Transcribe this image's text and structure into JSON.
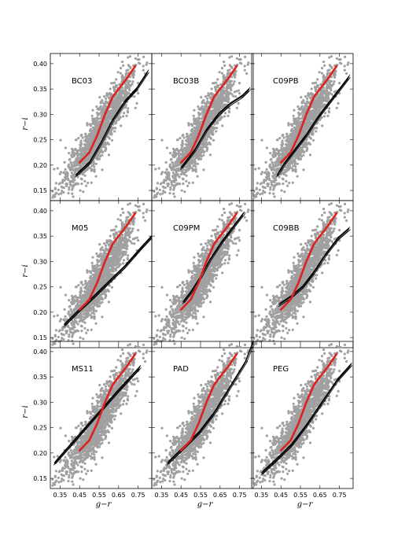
{
  "chart_data": {
    "type": "scatter",
    "layout": "3x3 grid of panels sharing axes",
    "xlabel": "g−r",
    "ylabel": "r−i",
    "xlim": [
      0.3,
      0.82
    ],
    "ylim": [
      0.13,
      0.42
    ],
    "xticks": [
      "0.35",
      "0.45",
      "0.55",
      "0.65",
      "0.75"
    ],
    "xtick_values": [
      0.35,
      0.45,
      0.55,
      0.65,
      0.75
    ],
    "yticks": [
      "0.15",
      "0.20",
      "0.25",
      "0.30",
      "0.35",
      "0.40"
    ],
    "ytick_values": [
      0.15,
      0.2,
      0.25,
      0.3,
      0.35,
      0.4
    ],
    "colors": {
      "points": "#a0a0a0",
      "observed_median": "#dd2222",
      "model_tracks": "#000000"
    },
    "red_median_track": {
      "x": [
        0.45,
        0.5,
        0.54,
        0.58,
        0.62,
        0.66,
        0.7,
        0.735
      ],
      "y": [
        0.205,
        0.225,
        0.258,
        0.3,
        0.335,
        0.355,
        0.375,
        0.395
      ]
    },
    "scatter_cloud": {
      "count": 1500,
      "core_track": {
        "x": [
          0.35,
          0.45,
          0.55,
          0.65,
          0.75,
          0.78
        ],
        "y": [
          0.16,
          0.2,
          0.26,
          0.33,
          0.38,
          0.4
        ]
      },
      "spread_x": 0.035,
      "spread_y": 0.022
    },
    "panels": [
      {
        "label": "BC03",
        "tracks": [
          {
            "x": [
              0.43,
              0.5,
              0.56,
              0.62,
              0.68,
              0.74,
              0.8
            ],
            "y": [
              0.18,
              0.205,
              0.245,
              0.29,
              0.325,
              0.35,
              0.385
            ]
          }
        ]
      },
      {
        "label": "BC03B",
        "tracks": [
          {
            "x": [
              0.45,
              0.52,
              0.58,
              0.64,
              0.7,
              0.76,
              0.8
            ],
            "y": [
              0.195,
              0.23,
              0.27,
              0.3,
              0.32,
              0.335,
              0.35
            ]
          }
        ]
      },
      {
        "label": "C09PB",
        "tracks": [
          {
            "x": [
              0.43,
              0.47,
              0.52,
              0.58,
              0.64,
              0.7,
              0.76,
              0.8
            ],
            "y": [
              0.18,
              0.205,
              0.23,
              0.26,
              0.295,
              0.325,
              0.355,
              0.375
            ]
          }
        ]
      },
      {
        "label": "M05",
        "tracks": [
          {
            "x": [
              0.37,
              0.45,
              0.52,
              0.6,
              0.68,
              0.76,
              0.82
            ],
            "y": [
              0.175,
              0.205,
              0.23,
              0.26,
              0.29,
              0.325,
              0.35
            ]
          }
        ]
      },
      {
        "label": "C09PM",
        "tracks": [
          {
            "x": [
              0.46,
              0.5,
              0.55,
              0.6,
              0.66,
              0.72,
              0.77
            ],
            "y": [
              0.22,
              0.24,
              0.27,
              0.305,
              0.34,
              0.37,
              0.395
            ]
          }
        ]
      },
      {
        "label": "C09BB",
        "tracks": [
          {
            "x": [
              0.44,
              0.5,
              0.56,
              0.62,
              0.68,
              0.74,
              0.8
            ],
            "y": [
              0.215,
              0.23,
              0.25,
              0.28,
              0.315,
              0.345,
              0.365
            ]
          }
        ]
      },
      {
        "label": "MS11",
        "tracks": [
          {
            "x": [
              0.32,
              0.4,
              0.48,
              0.56,
              0.64,
              0.7,
              0.76
            ],
            "y": [
              0.18,
              0.215,
              0.25,
              0.285,
              0.32,
              0.345,
              0.37
            ]
          }
        ]
      },
      {
        "label": "PAD",
        "tracks": [
          {
            "x": [
              0.38,
              0.46,
              0.54,
              0.62,
              0.7,
              0.78,
              0.82
            ],
            "y": [
              0.18,
              0.21,
              0.24,
              0.28,
              0.33,
              0.38,
              0.42
            ]
          }
        ]
      },
      {
        "label": "PEG",
        "tracks": [
          {
            "x": [
              0.35,
              0.42,
              0.5,
              0.58,
              0.66,
              0.74,
              0.81
            ],
            "y": [
              0.16,
              0.185,
              0.215,
              0.255,
              0.3,
              0.345,
              0.375
            ]
          }
        ]
      }
    ]
  }
}
